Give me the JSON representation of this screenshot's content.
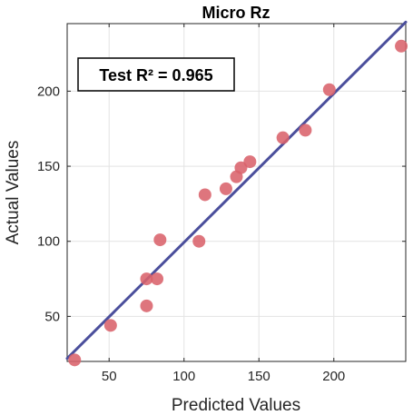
{
  "chart_data": {
    "type": "scatter",
    "title": "Micro Rz",
    "xlabel": "Predicted Values",
    "ylabel": "Actual Values",
    "xlim": [
      22,
      248
    ],
    "ylim": [
      20,
      245
    ],
    "xticks": [
      50,
      100,
      150,
      200
    ],
    "yticks": [
      50,
      100,
      150,
      200
    ],
    "grid": true,
    "annotation": "Test R² = 0.965",
    "fit_line": {
      "x": [
        22,
        248
      ],
      "y": [
        22,
        246
      ]
    },
    "points": [
      {
        "x": 27,
        "y": 21
      },
      {
        "x": 51,
        "y": 44
      },
      {
        "x": 75,
        "y": 57
      },
      {
        "x": 75,
        "y": 75
      },
      {
        "x": 82,
        "y": 75
      },
      {
        "x": 84,
        "y": 101
      },
      {
        "x": 110,
        "y": 100
      },
      {
        "x": 114,
        "y": 131
      },
      {
        "x": 128,
        "y": 135
      },
      {
        "x": 135,
        "y": 143
      },
      {
        "x": 138,
        "y": 149
      },
      {
        "x": 144,
        "y": 153
      },
      {
        "x": 166,
        "y": 169
      },
      {
        "x": 181,
        "y": 174
      },
      {
        "x": 197,
        "y": 201
      },
      {
        "x": 245,
        "y": 230
      }
    ],
    "colors": {
      "points": "#d9626b",
      "line": "#4b4f9c",
      "grid": "#e3e3e3",
      "axis": "#262626"
    }
  }
}
